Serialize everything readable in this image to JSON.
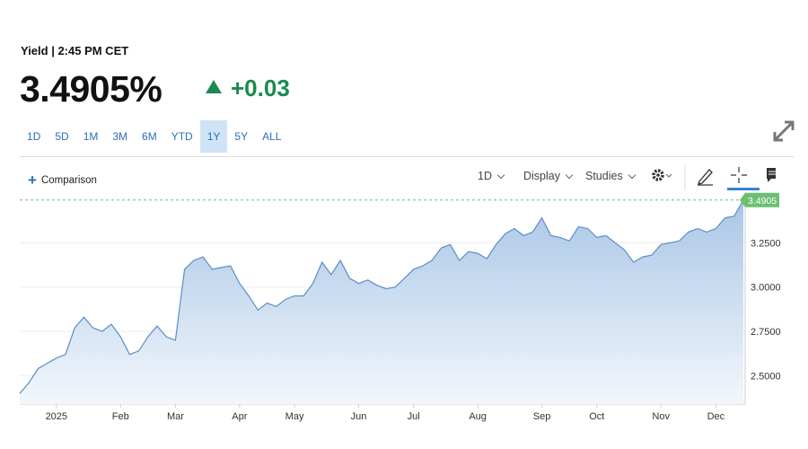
{
  "header": {
    "label": "Yield | 2:45 PM CET",
    "price": "3.4905%",
    "change": "+0.03"
  },
  "ranges": {
    "options": [
      "1D",
      "5D",
      "1M",
      "3M",
      "6M",
      "YTD",
      "1Y",
      "5Y",
      "ALL"
    ],
    "selected": "1Y"
  },
  "toolbar": {
    "comparison": "Comparison",
    "interval": "1D",
    "display": "Display",
    "studies": "Studies"
  },
  "chart_data": {
    "type": "line",
    "categories": [
      null,
      null,
      null,
      null,
      "2025",
      null,
      null,
      null,
      null,
      null,
      null,
      "Feb",
      null,
      null,
      null,
      null,
      null,
      "Mar",
      null,
      null,
      null,
      null,
      null,
      null,
      "Apr",
      null,
      null,
      null,
      null,
      null,
      "May",
      null,
      null,
      null,
      null,
      null,
      null,
      "Jun",
      null,
      null,
      null,
      null,
      null,
      "Jul",
      null,
      null,
      null,
      null,
      null,
      null,
      "Aug",
      null,
      null,
      null,
      null,
      null,
      null,
      "Sep",
      null,
      null,
      null,
      null,
      null,
      "Oct",
      null,
      null,
      null,
      null,
      null,
      null,
      "Nov",
      null,
      null,
      null,
      null,
      null,
      "Dec",
      null,
      null,
      null
    ],
    "values": [
      2.4,
      2.46,
      2.54,
      2.57,
      2.6,
      2.62,
      2.77,
      2.83,
      2.77,
      2.75,
      2.79,
      2.72,
      2.62,
      2.64,
      2.72,
      2.78,
      2.72,
      2.7,
      3.1,
      3.15,
      3.17,
      3.1,
      3.11,
      3.12,
      3.02,
      2.95,
      2.87,
      2.91,
      2.89,
      2.93,
      2.95,
      2.95,
      3.02,
      3.14,
      3.07,
      3.15,
      3.05,
      3.02,
      3.04,
      3.01,
      2.99,
      3.0,
      3.05,
      3.1,
      3.12,
      3.15,
      3.22,
      3.24,
      3.15,
      3.2,
      3.19,
      3.16,
      3.24,
      3.3,
      3.33,
      3.29,
      3.31,
      3.39,
      3.29,
      3.28,
      3.26,
      3.34,
      3.33,
      3.28,
      3.29,
      3.25,
      3.21,
      3.14,
      3.17,
      3.18,
      3.24,
      3.25,
      3.26,
      3.31,
      3.33,
      3.31,
      3.33,
      3.39,
      3.4,
      3.4905
    ],
    "color": "#5b8ec6",
    "last_value_color": "#6dbf73",
    "ylim": [
      2.34,
      3.53
    ],
    "yticks": [
      {
        "value": 2.5,
        "label": "2.5000"
      },
      {
        "value": 2.75,
        "label": "2.7500"
      },
      {
        "value": 3,
        "label": "3.0000"
      },
      {
        "value": 3.25,
        "label": "3.2500"
      }
    ],
    "grid": true
  }
}
